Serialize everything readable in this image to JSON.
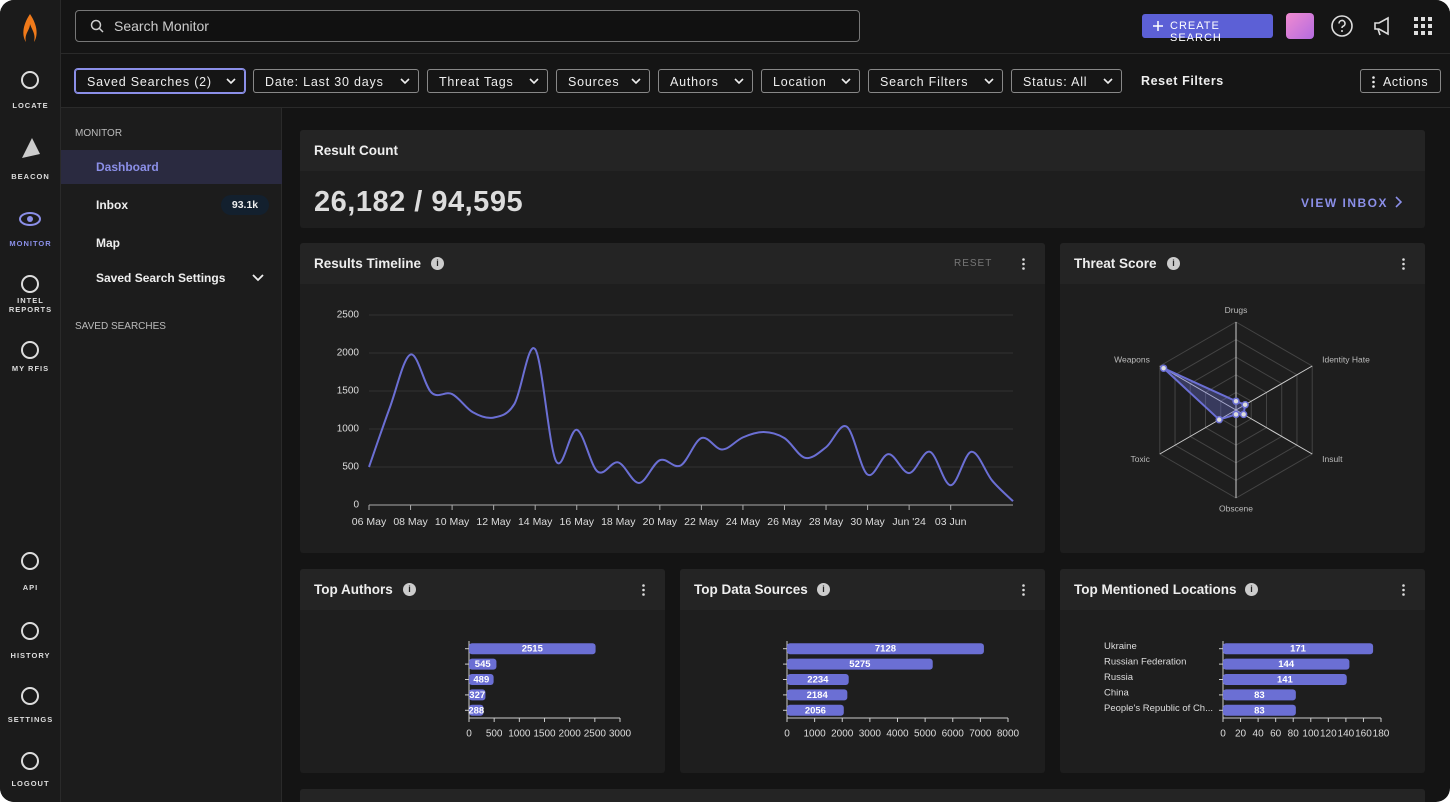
{
  "rail": {
    "items": [
      "LOCATE",
      "BEACON",
      "MONITOR",
      "INTEL REPORTS",
      "MY RFIS",
      "API",
      "HISTORY",
      "SETTINGS",
      "LOGOUT"
    ]
  },
  "topbar": {
    "search_placeholder": "Search Monitor",
    "create_button": "CREATE SEARCH"
  },
  "filters": {
    "items": [
      "Saved Searches (2)",
      "Date: Last 30 days",
      "Threat Tags",
      "Sources",
      "Authors",
      "Location",
      "Search Filters",
      "Status: All"
    ],
    "reset": "Reset Filters",
    "actions": "Actions"
  },
  "sidebar": {
    "section": "MONITOR",
    "items": [
      {
        "label": "Dashboard"
      },
      {
        "label": "Inbox",
        "badge": "93.1k"
      },
      {
        "label": "Map"
      },
      {
        "label": "Saved Search Settings"
      }
    ],
    "saved_searches": "SAVED SEARCHES"
  },
  "result_count": {
    "title": "Result Count",
    "value": "26,182 / 94,595",
    "link": "VIEW INBOX"
  },
  "timeline_controls": {
    "reset": "RESET"
  },
  "chart_data": [
    {
      "type": "line",
      "title": "Results Timeline",
      "color": "#6b6fd4",
      "grid": true,
      "categories": [
        "06 May",
        null,
        "08 May",
        null,
        "10 May",
        null,
        "12 May",
        null,
        "14 May",
        null,
        "16 May",
        null,
        "18 May",
        null,
        "20 May",
        null,
        "22 May",
        null,
        "24 May",
        null,
        "26 May",
        null,
        "28 May",
        null,
        "30 May",
        null,
        "Jun '24",
        null,
        "03 Jun",
        null,
        null,
        null
      ],
      "values": [
        500,
        1280,
        1980,
        1480,
        1460,
        1220,
        1150,
        1330,
        2050,
        580,
        990,
        440,
        560,
        290,
        590,
        520,
        880,
        730,
        890,
        960,
        880,
        620,
        760,
        1030,
        400,
        670,
        420,
        700,
        260,
        700,
        320,
        50
      ],
      "ylim": [
        0,
        2500
      ],
      "yticks": [
        0,
        500,
        1000,
        1500,
        2000,
        2500
      ]
    },
    {
      "type": "radar",
      "title": "Threat Score",
      "color": "#6b6fd4",
      "grid": true,
      "categories": [
        "Drugs",
        "Identity Hate",
        "Insult",
        "Obscene",
        "Toxic",
        "Weapons"
      ],
      "values": [
        0.1,
        0.12,
        0.1,
        0.05,
        0.22,
        0.95
      ],
      "rlim": [
        0,
        1
      ]
    },
    {
      "type": "hbar",
      "title": "Top Authors",
      "color": "#6b6fd4",
      "categories": [
        null,
        null,
        null,
        null,
        null
      ],
      "values": [
        2515,
        545,
        489,
        327,
        288
      ],
      "xlim": [
        0,
        3000
      ],
      "xticks": [
        0,
        500,
        1000,
        1500,
        2000,
        2500,
        3000
      ]
    },
    {
      "type": "hbar",
      "title": "Top Data Sources",
      "color": "#6b6fd4",
      "categories": [
        null,
        null,
        null,
        null,
        null
      ],
      "values": [
        7128,
        5275,
        2234,
        2184,
        2056
      ],
      "xlim": [
        0,
        8000
      ],
      "xticks": [
        0,
        1000,
        2000,
        3000,
        4000,
        5000,
        6000,
        7000,
        8000
      ]
    },
    {
      "type": "hbar",
      "title": "Top Mentioned Locations",
      "color": "#6b6fd4",
      "categories": [
        "Ukraine",
        "Russian Federation",
        "Russia",
        "China",
        "People's Republic of Ch..."
      ],
      "values": [
        171,
        144,
        141,
        83,
        83
      ],
      "xlim": [
        0,
        180
      ],
      "xticks": [
        0,
        20,
        40,
        60,
        80,
        100,
        120,
        140,
        160,
        180
      ]
    }
  ]
}
